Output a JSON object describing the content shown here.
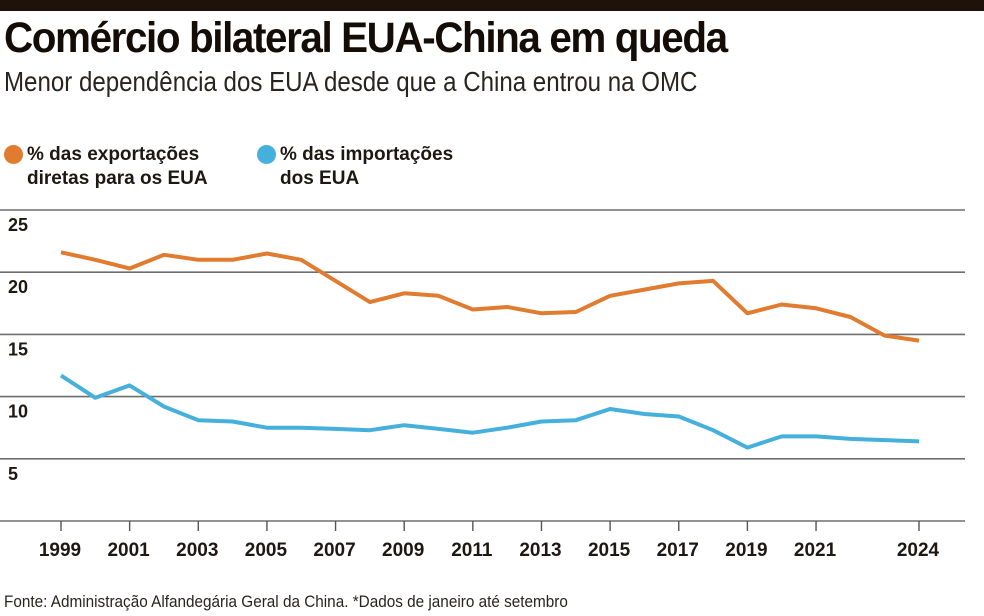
{
  "header": {
    "title": "Comércio bilateral EUA-China em queda",
    "subtitle": "Menor dependência dos EUA desde que a China entrou na OMC"
  },
  "legend": [
    {
      "line1": "% das exportações",
      "line2": "diretas para os EUA",
      "color": "#e07b30"
    },
    {
      "line1": "% das importações",
      "line2": "dos EUA",
      "color": "#45b0dc"
    }
  ],
  "footer": {
    "source": "Fonte: Administração Alfandegária Geral da China. *Dados de janeiro até setembro"
  },
  "chart_data": {
    "type": "line",
    "title": "Comércio bilateral EUA-China em queda",
    "subtitle": "Menor dependência dos EUA desde que a China entrou na OMC",
    "xlabel": "",
    "ylabel": "",
    "ylim": [
      0,
      25
    ],
    "yticks": [
      5,
      10,
      15,
      20,
      25
    ],
    "xlim": [
      1999,
      2024
    ],
    "xticks": [
      1999,
      2001,
      2003,
      2005,
      2007,
      2009,
      2011,
      2013,
      2015,
      2017,
      2019,
      2021,
      2024
    ],
    "grid": true,
    "legend_position": "top-left",
    "x": [
      1999,
      2000,
      2001,
      2002,
      2003,
      2004,
      2005,
      2006,
      2007,
      2008,
      2009,
      2010,
      2011,
      2012,
      2013,
      2014,
      2015,
      2016,
      2017,
      2018,
      2019,
      2020,
      2021,
      2022,
      2023,
      2024
    ],
    "series": [
      {
        "name": "% das exportações diretas para os EUA",
        "color": "#e07b30",
        "values": [
          21.6,
          21.0,
          20.3,
          21.4,
          21.0,
          21.0,
          21.5,
          21.0,
          19.3,
          17.6,
          18.3,
          18.1,
          17.0,
          17.2,
          16.7,
          16.8,
          18.1,
          18.6,
          19.1,
          19.3,
          16.7,
          17.4,
          17.1,
          16.4,
          14.9,
          14.5
        ]
      },
      {
        "name": "% das importações dos EUA",
        "color": "#45b0dc",
        "values": [
          11.7,
          9.9,
          10.9,
          9.2,
          8.1,
          8.0,
          7.5,
          7.5,
          7.4,
          7.3,
          7.7,
          7.4,
          7.1,
          7.5,
          8.0,
          8.1,
          9.0,
          8.6,
          8.4,
          7.3,
          5.9,
          6.8,
          6.8,
          6.6,
          6.5,
          6.4
        ]
      }
    ],
    "annotations": [
      "*Dados de janeiro até setembro"
    ],
    "source": "Fonte: Administração Alfandegária Geral da China. *Dados de janeiro até setembro"
  }
}
